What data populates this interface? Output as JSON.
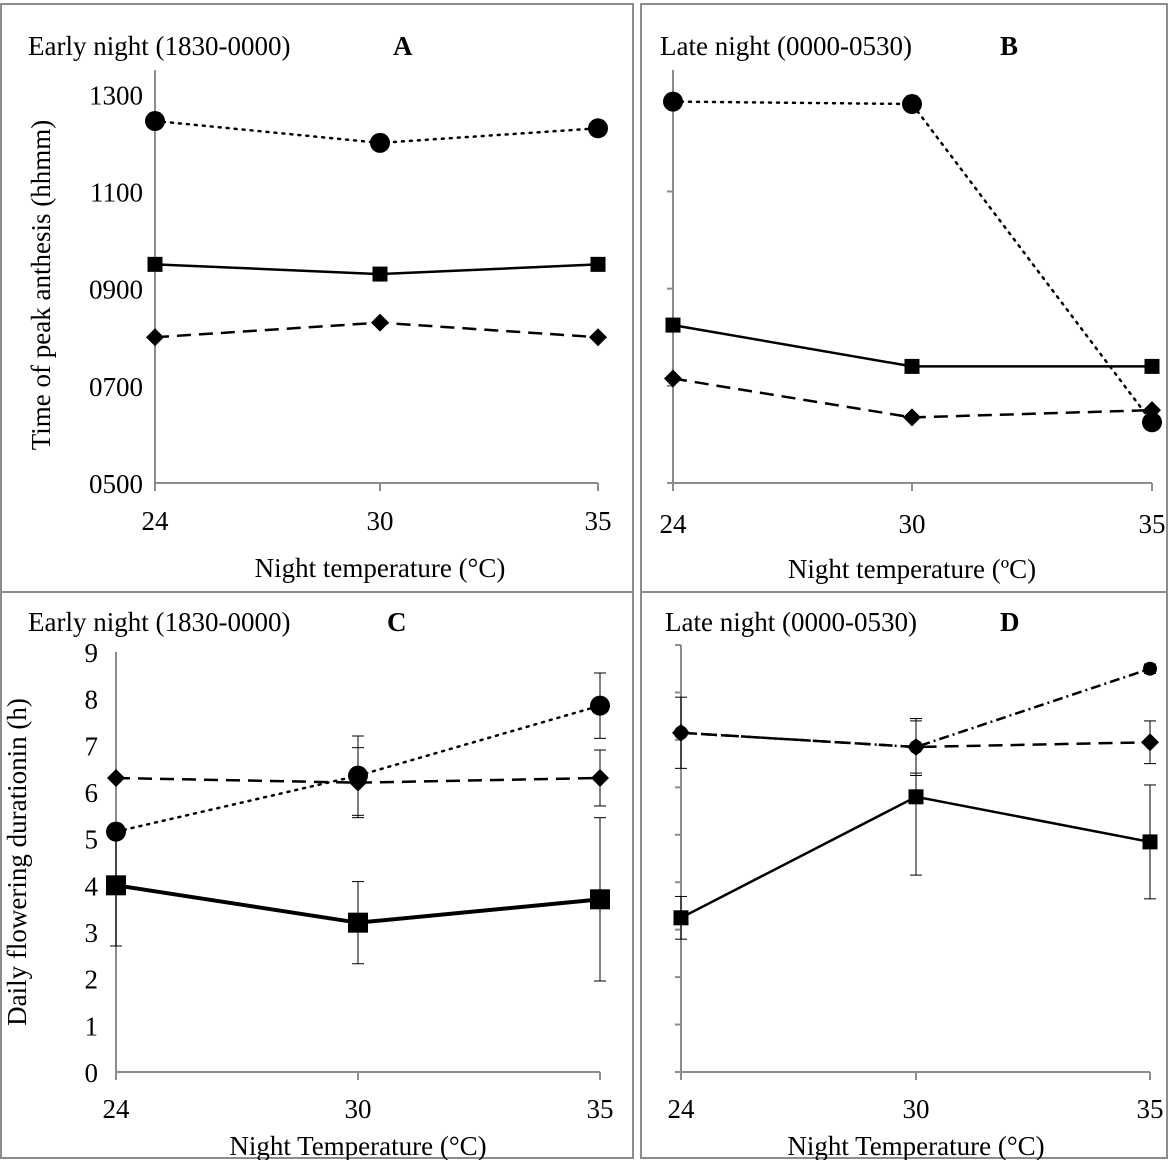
{
  "chart_data": [
    {
      "type": "line",
      "panel_title": "Early night (1830-0000)",
      "panel_letter": "A",
      "xlabel": "Night temperature (°C)",
      "ylabel": "Time of peak anthesis (hhmm)",
      "categories": [
        "24",
        "30",
        "35"
      ],
      "y_ticks": [
        "0500",
        "0700",
        "0900",
        "1100",
        "1300"
      ],
      "show_y_tick_labels": true,
      "ylim": [
        500,
        1350
      ],
      "series": [
        {
          "style": "dotted",
          "marker": "circle",
          "values": [
            1245,
            1200,
            1230
          ]
        },
        {
          "style": "solid",
          "marker": "square",
          "values": [
            950,
            930,
            950
          ]
        },
        {
          "style": "dashed",
          "marker": "diamond",
          "values": [
            800,
            830,
            800
          ]
        }
      ]
    },
    {
      "type": "line",
      "panel_title": "Late night (0000-0530)",
      "panel_letter": "B",
      "xlabel": "Night temperature (ºC)",
      "ylabel": "",
      "categories": [
        "24",
        "30",
        "35"
      ],
      "y_ticks": [
        "0500",
        "0700",
        "0900",
        "1100",
        "1300"
      ],
      "show_y_tick_labels": false,
      "ylim": [
        500,
        1350
      ],
      "series": [
        {
          "style": "dotted",
          "marker": "circle",
          "values": [
            1285,
            1280,
            625
          ]
        },
        {
          "style": "solid",
          "marker": "square",
          "values": [
            825,
            740,
            740
          ]
        },
        {
          "style": "dashed",
          "marker": "diamond",
          "values": [
            715,
            635,
            650
          ]
        }
      ]
    },
    {
      "type": "line",
      "panel_title": "Early night (1830-0000)",
      "panel_letter": "C",
      "xlabel": "Night Temperature (°C)",
      "ylabel": "Daily flowering durationin (h)",
      "categories": [
        "24",
        "30",
        "35"
      ],
      "y_ticks": [
        "0",
        "1",
        "2",
        "3",
        "4",
        "5",
        "6",
        "7",
        "8",
        "9"
      ],
      "show_y_tick_labels": true,
      "ylim": [
        0,
        9
      ],
      "series": [
        {
          "style": "dotted",
          "marker": "circle",
          "values": [
            5.15,
            6.35,
            7.85
          ],
          "err": [
            0,
            0.85,
            0.7
          ]
        },
        {
          "style": "dashed",
          "marker": "diamond",
          "values": [
            6.3,
            6.2,
            6.3
          ],
          "err": [
            0,
            0.75,
            0.6
          ]
        },
        {
          "style": "solid",
          "marker": "square",
          "values": [
            4.0,
            3.2,
            3.7
          ],
          "err": [
            1.3,
            0.88,
            1.75
          ]
        }
      ]
    },
    {
      "type": "line",
      "panel_title": "Late night (0000-0530)",
      "panel_letter": "D",
      "xlabel": "Night Temperature (°C)",
      "ylabel": "",
      "categories": [
        "24",
        "30",
        "35"
      ],
      "y_ticks": [
        "0",
        "1",
        "2",
        "3",
        "4",
        "5",
        "6",
        "7",
        "8",
        "9"
      ],
      "show_y_tick_labels": false,
      "ylim": [
        0,
        9
      ],
      "series": [
        {
          "style": "dashdot",
          "marker": "circle",
          "values": [
            7.15,
            6.85,
            8.5
          ],
          "err": [
            0,
            0.6,
            0.1
          ]
        },
        {
          "style": "dashed",
          "marker": "diamond",
          "values": [
            7.15,
            6.85,
            6.95
          ],
          "err": [
            0.75,
            0.55,
            0.45
          ]
        },
        {
          "style": "solid",
          "marker": "square",
          "values": [
            3.25,
            5.8,
            4.85
          ],
          "err": [
            0.45,
            1.65,
            1.2
          ]
        }
      ]
    }
  ]
}
